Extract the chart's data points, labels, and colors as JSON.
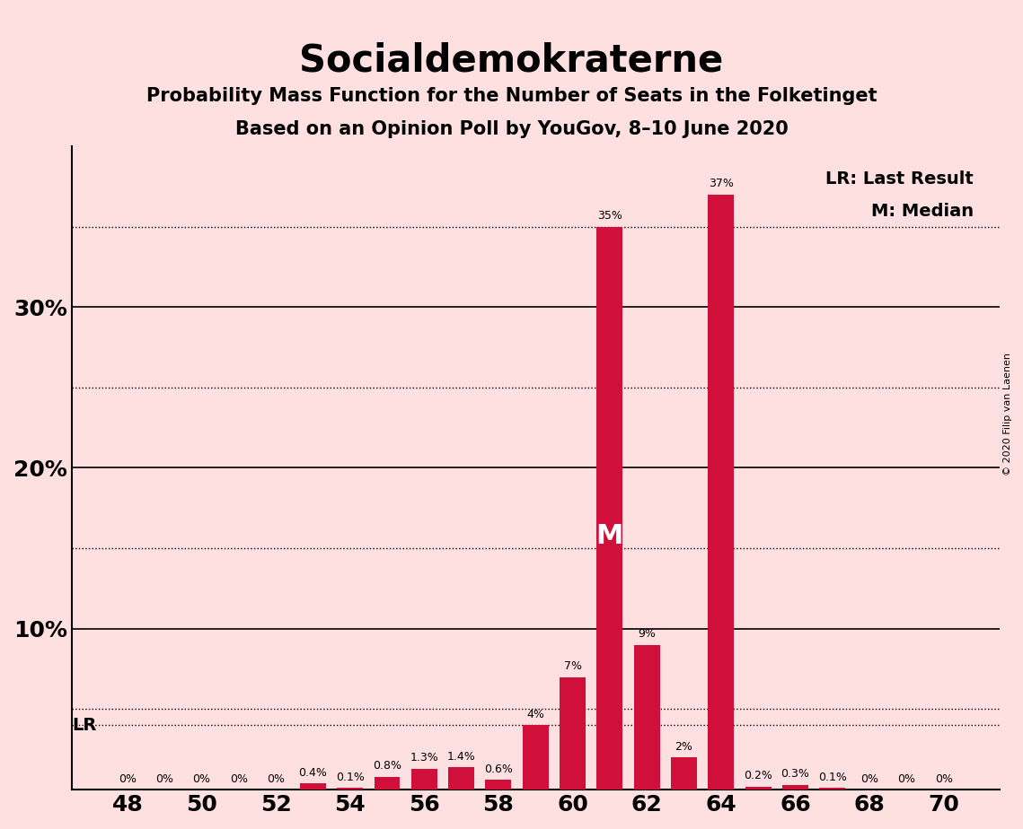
{
  "title": "Socialdemokraterne",
  "subtitle1": "Probability Mass Function for the Number of Seats in the Folketinget",
  "subtitle2": "Based on an Opinion Poll by YouGov, 8–10 June 2020",
  "copyright": "© 2020 Filip van Laenen",
  "seats": [
    48,
    49,
    50,
    51,
    52,
    53,
    54,
    55,
    56,
    57,
    58,
    59,
    60,
    61,
    62,
    63,
    64,
    65,
    66,
    67,
    68,
    69,
    70
  ],
  "probabilities": [
    0.0,
    0.0,
    0.0,
    0.0,
    0.0,
    0.4,
    0.1,
    0.8,
    1.3,
    1.4,
    0.6,
    4.0,
    7.0,
    35.0,
    9.0,
    2.0,
    37.0,
    0.2,
    0.3,
    0.1,
    0.0,
    0.0,
    0.0
  ],
  "bar_color": "#D0103A",
  "background_color": "#FFE0E0",
  "median_seat": 61,
  "lr_seat": 59,
  "lr_value": 4.0,
  "ylim": [
    0,
    40
  ],
  "yticks": [
    0,
    5,
    10,
    15,
    20,
    25,
    30,
    35,
    40
  ],
  "ylabel_ticks": [
    10,
    20,
    30
  ],
  "dotted_lines": [
    5.0,
    15.0,
    25.0,
    35.0
  ],
  "solid_lines": [
    10.0,
    20.0,
    30.0
  ],
  "annotations": {
    "0%_seats": [
      48,
      49,
      50,
      51,
      52
    ],
    "show_labels": true
  },
  "legend_text1": "LR: Last Result",
  "legend_text2": "M: Median"
}
